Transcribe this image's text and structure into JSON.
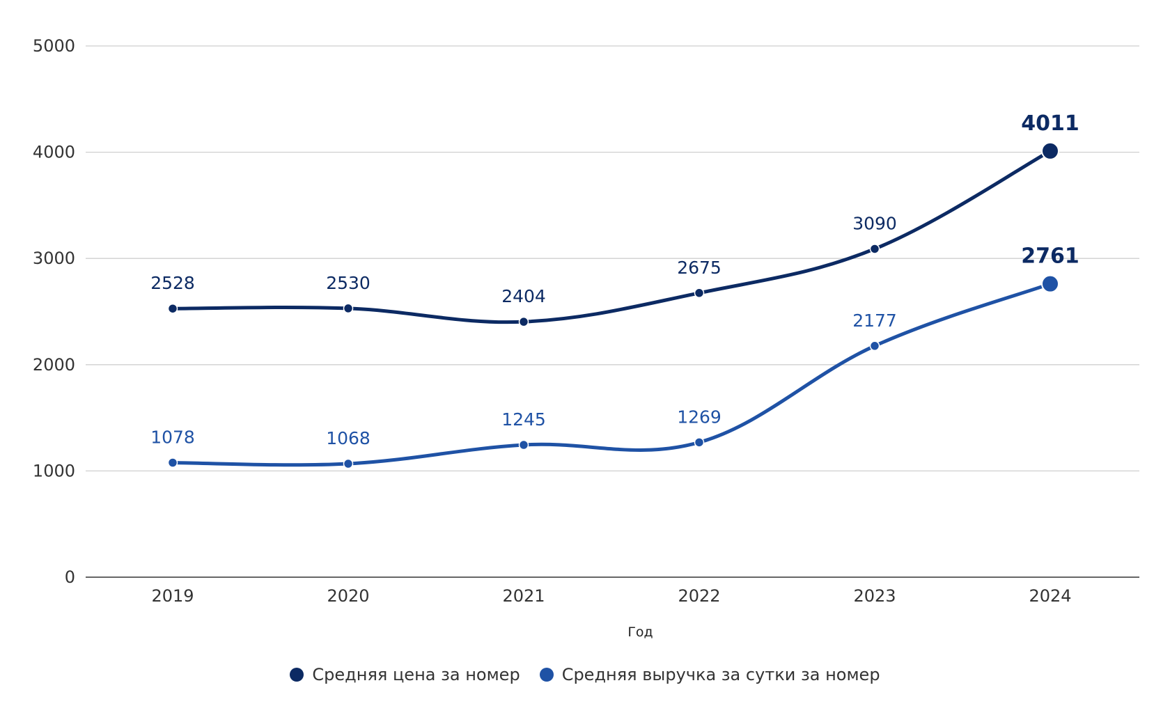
{
  "chart_data": {
    "type": "line",
    "categories": [
      "2019",
      "2020",
      "2021",
      "2022",
      "2023",
      "2024"
    ],
    "series": [
      {
        "name": "Средняя цена за номер",
        "values": [
          2528,
          2530,
          2404,
          2675,
          3090,
          4011
        ],
        "color": "#0c2a63"
      },
      {
        "name": "Средняя выручка за сутки за номер",
        "values": [
          1078,
          1068,
          1245,
          1269,
          2177,
          2761
        ],
        "color": "#1f52a5"
      }
    ],
    "xlabel": "Год",
    "ylabel": "",
    "ylim": [
      0,
      5000
    ],
    "yticks": [
      "0",
      "1000",
      "2000",
      "3000",
      "4000",
      "5000"
    ],
    "grid": true,
    "legend_position": "bottom",
    "last_point_emphasized": true
  }
}
